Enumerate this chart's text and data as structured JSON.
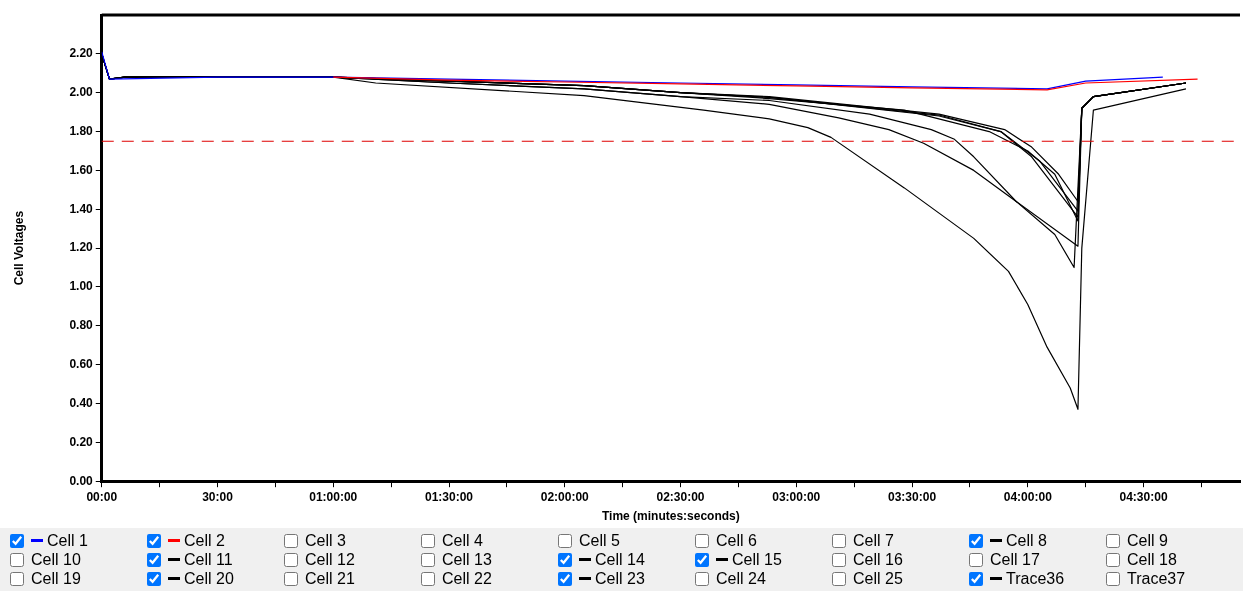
{
  "chart_data": {
    "type": "line",
    "xlabel": "Time (minutes:seconds)",
    "ylabel": "Cell Voltages",
    "xlim": [
      0,
      295
    ],
    "ylim": [
      0,
      2.4
    ],
    "xticks": [
      {
        "value": 0,
        "label": "00:00"
      },
      {
        "value": 15,
        "label": null
      },
      {
        "value": 30,
        "label": "30:00"
      },
      {
        "value": 45,
        "label": null
      },
      {
        "value": 60,
        "label": "01:00:00"
      },
      {
        "value": 75,
        "label": null
      },
      {
        "value": 90,
        "label": "01:30:00"
      },
      {
        "value": 105,
        "label": null
      },
      {
        "value": 120,
        "label": "02:00:00"
      },
      {
        "value": 135,
        "label": null
      },
      {
        "value": 150,
        "label": "02:30:00"
      },
      {
        "value": 165,
        "label": null
      },
      {
        "value": 180,
        "label": "03:00:00"
      },
      {
        "value": 195,
        "label": null
      },
      {
        "value": 210,
        "label": "03:30:00"
      },
      {
        "value": 225,
        "label": null
      },
      {
        "value": 240,
        "label": "04:00:00"
      },
      {
        "value": 255,
        "label": null
      },
      {
        "value": 270,
        "label": "04:30:00"
      },
      {
        "value": 285,
        "label": null
      }
    ],
    "yticks": [
      {
        "value": 0,
        "label": "0.00"
      },
      {
        "value": 0.2,
        "label": "0.20"
      },
      {
        "value": 0.4,
        "label": "0.40"
      },
      {
        "value": 0.6,
        "label": "0.60"
      },
      {
        "value": 0.8,
        "label": "0.80"
      },
      {
        "value": 1,
        "label": "1.00"
      },
      {
        "value": 1.2,
        "label": "1.20"
      },
      {
        "value": 1.4,
        "label": "1.40"
      },
      {
        "value": 1.6,
        "label": "1.60"
      },
      {
        "value": 1.8,
        "label": "1.80"
      },
      {
        "value": 2,
        "label": "2.00"
      },
      {
        "value": 2.2,
        "label": "2.20"
      }
    ],
    "grid": false,
    "legend": "bottom",
    "marker": "none",
    "line_style": "solid",
    "ref_lines": [
      {
        "axis": "y",
        "value": 1.75,
        "color": "#e00000",
        "line_style": "dashed"
      }
    ],
    "series": [
      {
        "name": "Cell 1",
        "color": "#0000ff",
        "x": [
          0,
          2,
          30,
          60,
          90,
          120,
          150,
          180,
          210,
          245,
          255,
          275
        ],
        "values": [
          2.21,
          2.07,
          2.08,
          2.08,
          2.07,
          2.06,
          2.05,
          2.04,
          2.03,
          2.02,
          2.06,
          2.08
        ]
      },
      {
        "name": "Cell 2",
        "color": "#ff0000",
        "x": [
          60,
          90,
          120,
          150,
          180,
          210,
          245,
          255,
          284
        ],
        "values": [
          2.08,
          2.065,
          2.055,
          2.045,
          2.035,
          2.025,
          2.015,
          2.05,
          2.07
        ]
      },
      {
        "name": "Cell 3"
      },
      {
        "name": "Cell 4"
      },
      {
        "name": "Cell 5"
      },
      {
        "name": "Cell 6"
      },
      {
        "name": "Cell 7"
      },
      {
        "name": "Cell 8",
        "color": "#000000",
        "x": [
          0,
          2,
          6,
          60,
          71,
          125,
          156,
          173,
          183,
          189,
          208,
          226,
          235,
          240,
          245,
          251,
          253,
          254,
          257,
          281
        ],
        "values": [
          2.2,
          2.07,
          2.08,
          2.08,
          2.05,
          1.985,
          1.91,
          1.865,
          1.82,
          1.77,
          1.51,
          1.25,
          1.08,
          0.91,
          0.69,
          0.48,
          0.37,
          1.2,
          1.91,
          2.02
        ]
      },
      {
        "name": "Cell 9"
      },
      {
        "name": "Cell 10"
      },
      {
        "name": "Cell 11",
        "color": "#000000",
        "x": [
          0,
          2,
          6,
          60,
          90,
          125,
          150,
          173,
          199,
          215,
          221,
          226,
          237,
          247,
          252,
          254,
          257,
          281
        ],
        "values": [
          2.2,
          2.07,
          2.08,
          2.08,
          2.05,
          2.02,
          1.98,
          1.96,
          1.89,
          1.81,
          1.76,
          1.67,
          1.44,
          1.27,
          1.1,
          1.92,
          1.98,
          2.05
        ]
      },
      {
        "name": "Cell 12"
      },
      {
        "name": "Cell 13"
      },
      {
        "name": "Cell 14",
        "color": "#000000",
        "x": [
          0,
          2,
          6,
          60,
          90,
          125,
          150,
          173,
          191,
          204,
          213,
          226,
          237,
          253,
          254,
          257,
          281
        ],
        "values": [
          2.2,
          2.07,
          2.08,
          2.08,
          2.05,
          2.02,
          1.98,
          1.94,
          1.87,
          1.81,
          1.74,
          1.6,
          1.44,
          1.21,
          1.92,
          1.98,
          2.05
        ]
      },
      {
        "name": "Cell 15",
        "color": "#000000",
        "x": [
          0,
          2,
          6,
          60,
          90,
          125,
          150,
          173,
          208,
          230,
          240,
          247,
          253,
          254,
          257,
          281
        ],
        "values": [
          2.2,
          2.07,
          2.08,
          2.08,
          2.06,
          2.036,
          2.0,
          1.97,
          1.91,
          1.8,
          1.7,
          1.58,
          1.34,
          1.92,
          1.98,
          2.05
        ]
      },
      {
        "name": "Cell 16"
      },
      {
        "name": "Cell 17"
      },
      {
        "name": "Cell 18"
      },
      {
        "name": "Cell 19"
      },
      {
        "name": "Cell 20",
        "color": "#000000",
        "x": [
          0,
          2,
          6,
          60,
          90,
          125,
          150,
          173,
          217,
          233,
          241,
          253,
          254,
          257,
          281
        ],
        "values": [
          2.2,
          2.07,
          2.08,
          2.08,
          2.06,
          2.036,
          2.0,
          1.976,
          1.88,
          1.8,
          1.67,
          1.36,
          1.92,
          1.98,
          2.05
        ]
      },
      {
        "name": "Cell 21"
      },
      {
        "name": "Cell 22"
      },
      {
        "name": "Cell 23",
        "color": "#000000",
        "x": [
          0,
          2,
          6,
          60,
          90,
          125,
          150,
          173,
          217,
          234,
          241,
          248,
          253,
          254,
          257,
          281
        ],
        "values": [
          2.2,
          2.07,
          2.08,
          2.08,
          2.06,
          2.036,
          2.0,
          1.98,
          1.89,
          1.81,
          1.72,
          1.58,
          1.44,
          1.92,
          1.98,
          2.05
        ]
      },
      {
        "name": "Cell 24"
      },
      {
        "name": "Cell 25"
      },
      {
        "name": "Trace36",
        "color": "#000000",
        "x": [
          0,
          2,
          6,
          60,
          90,
          125,
          150,
          173,
          217,
          233,
          243,
          253,
          254,
          257,
          281
        ],
        "values": [
          2.2,
          2.07,
          2.08,
          2.08,
          2.06,
          2.036,
          2.0,
          1.976,
          1.885,
          1.8,
          1.65,
          1.39,
          1.92,
          1.98,
          2.05
        ]
      },
      {
        "name": "Trace37"
      }
    ]
  }
}
